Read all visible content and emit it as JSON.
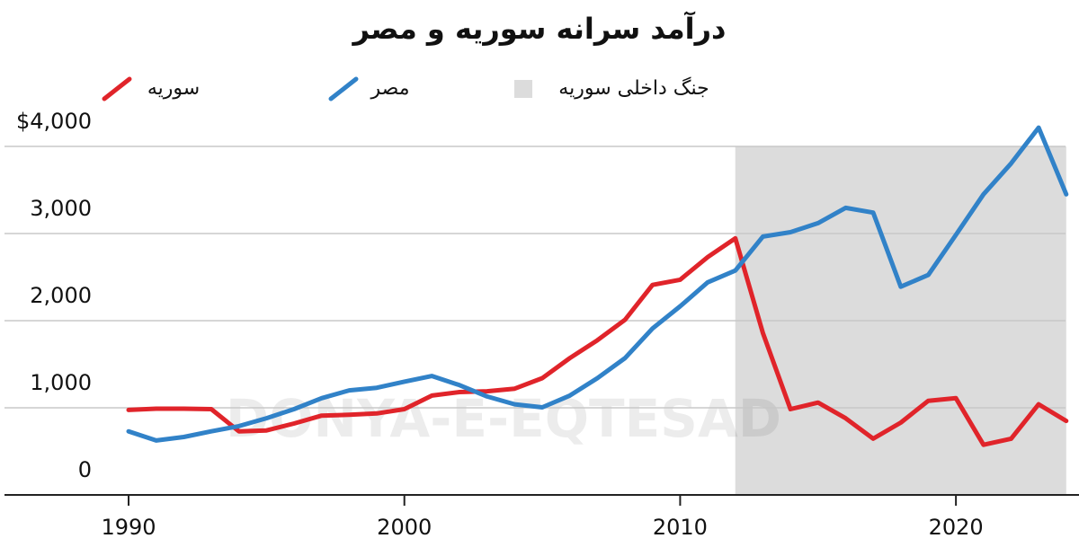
{
  "chart_data": {
    "type": "line",
    "title": "درآمد سرانه سوریه و مصر",
    "watermark": "DONYA-E-EQTESAD",
    "x": [
      1990,
      1991,
      1992,
      1993,
      1994,
      1995,
      1996,
      1997,
      1998,
      1999,
      2000,
      2001,
      2002,
      2003,
      2004,
      2005,
      2006,
      2007,
      2008,
      2009,
      2010,
      2011,
      2012,
      2013,
      2014,
      2015,
      2016,
      2017,
      2018,
      2019,
      2020,
      2021,
      2022,
      2023,
      2024
    ],
    "series": [
      {
        "name": "سوریه",
        "color": "#e0242a",
        "values": [
          975,
          990,
          990,
          985,
          730,
          740,
          820,
          910,
          920,
          935,
          985,
          1140,
          1180,
          1190,
          1220,
          1340,
          1570,
          1775,
          2010,
          2410,
          2470,
          2730,
          2945,
          1860,
          985,
          1060,
          880,
          645,
          830,
          1080,
          1110,
          575,
          645,
          1040,
          850
        ]
      },
      {
        "name": "مصر",
        "color": "#3182c8",
        "values": [
          730,
          625,
          665,
          730,
          790,
          880,
          985,
          1110,
          1200,
          1230,
          1300,
          1365,
          1260,
          1130,
          1040,
          1005,
          1140,
          1340,
          1570,
          1910,
          2165,
          2440,
          2575,
          2965,
          3015,
          3120,
          3295,
          3240,
          2390,
          2525,
          2985,
          3450,
          3805,
          4215,
          3450
        ]
      }
    ],
    "shade": {
      "name": "جنگ داخلی سوریه",
      "color": "#dcdcdc",
      "x": [
        2012,
        2024
      ]
    },
    "xlim": [
      1985.5,
      2024.3
    ],
    "xticks": [
      1990,
      2000,
      2010,
      2020
    ],
    "ylim": [
      0,
      4000
    ],
    "yticks": [
      0,
      {
        "value": 1000,
        "label": "1,000"
      },
      {
        "value": 2000,
        "label": "2,000"
      },
      {
        "value": 3000,
        "label": "3,000"
      },
      {
        "value": 4000,
        "label": "$4,000"
      }
    ],
    "grid": true
  }
}
